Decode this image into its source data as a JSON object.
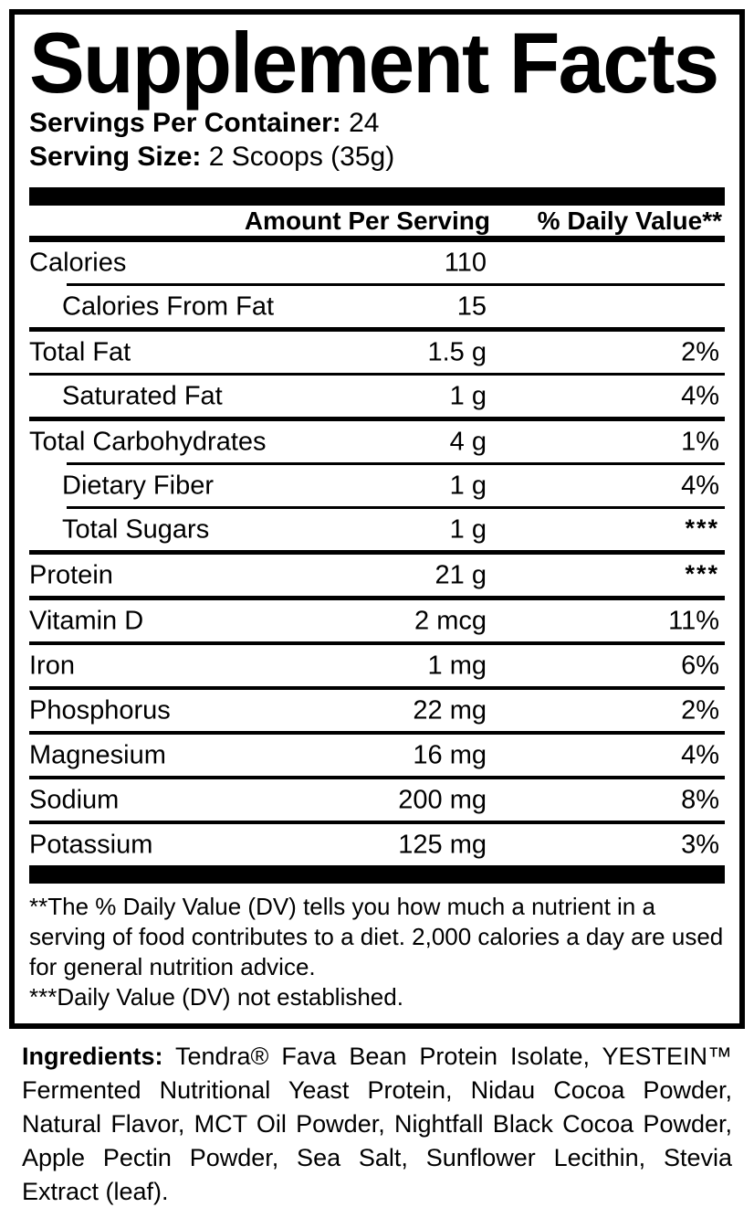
{
  "label": {
    "title": "Supplement Facts",
    "servings_per_container_label": "Servings Per Container:",
    "servings_per_container_value": "24",
    "serving_size_label": "Serving Size:",
    "serving_size_value": "2 Scoops (35g)",
    "columns": {
      "amount": "Amount Per Serving",
      "daily_value": "% Daily Value**"
    },
    "rows": [
      {
        "name": "Calories",
        "amount": "110",
        "dv": "",
        "indent": false,
        "separator": "none"
      },
      {
        "name": "Calories From Fat",
        "amount": "15",
        "dv": "",
        "indent": true,
        "separator": "sep-indent"
      },
      {
        "name": "Total Fat",
        "amount": "1.5 g",
        "dv": "2%",
        "indent": false,
        "separator": "sep-major"
      },
      {
        "name": "Saturated Fat",
        "amount": "1 g",
        "dv": "4%",
        "indent": true,
        "separator": "sep-thin"
      },
      {
        "name": "Total Carbohydrates",
        "amount": "4 g",
        "dv": "1%",
        "indent": false,
        "separator": "sep-major"
      },
      {
        "name": "Dietary Fiber",
        "amount": "1 g",
        "dv": "4%",
        "indent": true,
        "separator": "sep-indent"
      },
      {
        "name": "Total Sugars",
        "amount": "1 g",
        "dv": "***",
        "indent": true,
        "separator": "sep-indent"
      },
      {
        "name": "Protein",
        "amount": "21 g",
        "dv": "***",
        "indent": false,
        "separator": "sep-major"
      },
      {
        "name": "Vitamin D",
        "amount": "2 mcg",
        "dv": "11%",
        "indent": false,
        "separator": "sep-major"
      },
      {
        "name": "Iron",
        "amount": "1 mg",
        "dv": "6%",
        "indent": false,
        "separator": "sep-minor"
      },
      {
        "name": "Phosphorus",
        "amount": "22 mg",
        "dv": "2%",
        "indent": false,
        "separator": "sep-minor"
      },
      {
        "name": "Magnesium",
        "amount": "16 mg",
        "dv": "4%",
        "indent": false,
        "separator": "sep-minor"
      },
      {
        "name": "Sodium",
        "amount": "200 mg",
        "dv": "8%",
        "indent": false,
        "separator": "sep-minor"
      },
      {
        "name": "Potassium",
        "amount": "125 mg",
        "dv": "3%",
        "indent": false,
        "separator": "sep-minor"
      }
    ],
    "footnotes": [
      "**The % Daily Value (DV) tells you how much a nutrient in a serving of food contributes to a diet. 2,000 calories a day are used for general nutrition advice.",
      "***Daily Value (DV) not established."
    ],
    "ingredients_label": "Ingredients:",
    "ingredients_text": "Tendra® Fava Bean Protein Isolate, YESTEIN™ Fermented Nutritional Yeast Protein, Nidau Cocoa Powder, Natural Flavor, MCT Oil Powder, Nightfall Black Cocoa Powder, Apple Pectin Powder, Sea Salt, Sunflower Lecithin, Stevia Extract (leaf)."
  },
  "colors": {
    "text": "#000000",
    "background": "#ffffff",
    "rule": "#000000"
  }
}
